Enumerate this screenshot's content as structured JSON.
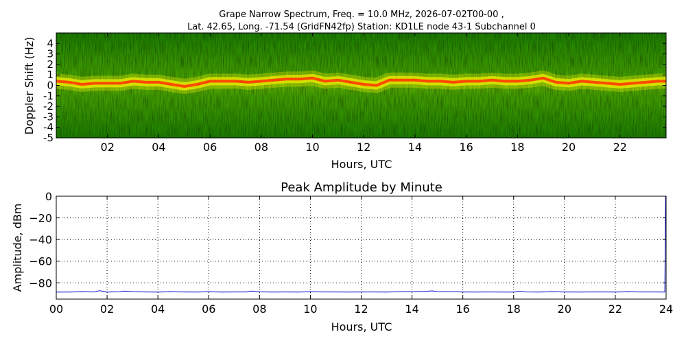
{
  "title": {
    "line1": "Grape Narrow Spectrum, Freq. = 10.0 MHz, 2026-07-02T00-00 ,",
    "line2": "Lat.  42.65, Long. -71.54 (GridFN42fp) Station: KD1LE node 43-1 Subchannel 0"
  },
  "colors": {
    "spectrogram_low": "#1a7a00",
    "spectrogram_mid": "#e8e800",
    "spectrogram_peak": "#ff4000",
    "amplitude_line": "#0000cc",
    "grid": "#000000"
  },
  "chart_data": [
    {
      "type": "heatmap",
      "name": "spectrogram",
      "xlabel": "Hours, UTC",
      "ylabel": "Doppler Shift (Hz)",
      "xlim": [
        0,
        23.8
      ],
      "ylim": [
        -5,
        5
      ],
      "xticks": [
        2,
        4,
        6,
        8,
        10,
        12,
        14,
        16,
        18,
        20,
        22
      ],
      "xtick_labels": [
        "02",
        "04",
        "06",
        "08",
        "10",
        "12",
        "14",
        "16",
        "18",
        "20",
        "22"
      ],
      "yticks": [
        4,
        3,
        2,
        1,
        0,
        -1,
        -2,
        -3,
        -4,
        -5
      ],
      "ytick_labels": [
        "4",
        "3",
        "2",
        "1",
        "0",
        "-1",
        "-2",
        "-3",
        "-4",
        "-5"
      ],
      "grid": false,
      "peak_trace": {
        "hours": [
          0,
          0.5,
          1,
          1.5,
          2,
          2.5,
          3,
          3.5,
          4,
          4.5,
          5,
          5.5,
          6,
          6.5,
          7,
          7.5,
          8,
          8.5,
          9,
          9.5,
          10,
          10.5,
          11,
          11.5,
          12,
          12.5,
          13,
          13.5,
          14,
          14.5,
          15,
          15.5,
          16,
          16.5,
          17,
          17.5,
          18,
          18.5,
          19,
          19.5,
          20,
          20.5,
          21,
          21.5,
          22,
          22.5,
          23,
          23.5,
          23.8
        ],
        "doppler_hz": [
          0.4,
          0.3,
          0.1,
          0.2,
          0.2,
          0.2,
          0.4,
          0.3,
          0.3,
          0.1,
          -0.1,
          0.1,
          0.4,
          0.4,
          0.4,
          0.3,
          0.4,
          0.5,
          0.6,
          0.6,
          0.7,
          0.4,
          0.5,
          0.3,
          0.1,
          0.0,
          0.5,
          0.5,
          0.5,
          0.4,
          0.4,
          0.3,
          0.4,
          0.4,
          0.5,
          0.4,
          0.4,
          0.5,
          0.7,
          0.3,
          0.2,
          0.4,
          0.3,
          0.2,
          0.1,
          0.2,
          0.3,
          0.4,
          0.4
        ]
      }
    },
    {
      "type": "line",
      "title": "Peak Amplitude by Minute",
      "xlabel": "Hours, UTC",
      "ylabel": "Amplitude, dBm",
      "xlim": [
        0,
        24
      ],
      "ylim": [
        -95,
        0
      ],
      "xticks": [
        0,
        2,
        4,
        6,
        8,
        10,
        12,
        14,
        16,
        18,
        20,
        22,
        24
      ],
      "xtick_labels": [
        "00",
        "02",
        "04",
        "06",
        "08",
        "10",
        "12",
        "14",
        "16",
        "18",
        "20",
        "22",
        "24"
      ],
      "yticks": [
        0,
        -20,
        -40,
        -60,
        -80
      ],
      "ytick_labels": [
        "0",
        "−20",
        "−40",
        "−60",
        "−80"
      ],
      "grid": true,
      "series": [
        {
          "x": [
            0,
            0.5,
            1,
            1.5,
            1.7,
            2,
            2.5,
            2.7,
            3,
            3.5,
            4,
            4.5,
            5,
            5.5,
            6,
            6.5,
            7,
            7.5,
            7.7,
            8,
            8.5,
            9,
            9.5,
            10,
            10.5,
            11,
            11.5,
            12,
            12.5,
            13,
            13.5,
            14,
            14.5,
            14.8,
            15,
            15.5,
            16,
            16.5,
            17,
            17.5,
            18,
            18.2,
            18.5,
            19,
            19.5,
            20,
            20.5,
            21,
            21.5,
            22,
            22.5,
            23,
            23.5,
            23.95,
            23.98
          ],
          "y": [
            -88.5,
            -88.5,
            -88.3,
            -88.4,
            -87.2,
            -88.5,
            -88.3,
            -87.6,
            -88.2,
            -88.4,
            -88.5,
            -88.3,
            -88.4,
            -88.5,
            -88.3,
            -88.5,
            -88.4,
            -88.4,
            -87.5,
            -88.3,
            -88.5,
            -88.4,
            -88.5,
            -88.3,
            -88.4,
            -88.4,
            -88.5,
            -88.4,
            -88.4,
            -88.5,
            -88.3,
            -88.2,
            -87.9,
            -87.4,
            -88.1,
            -88.3,
            -88.4,
            -88.5,
            -88.4,
            -88.5,
            -88.5,
            -87.8,
            -88.4,
            -88.5,
            -88.3,
            -88.4,
            -88.5,
            -88.4,
            -88.4,
            -88.5,
            -88.3,
            -88.4,
            -88.4,
            -88.5,
            0
          ]
        }
      ]
    }
  ]
}
